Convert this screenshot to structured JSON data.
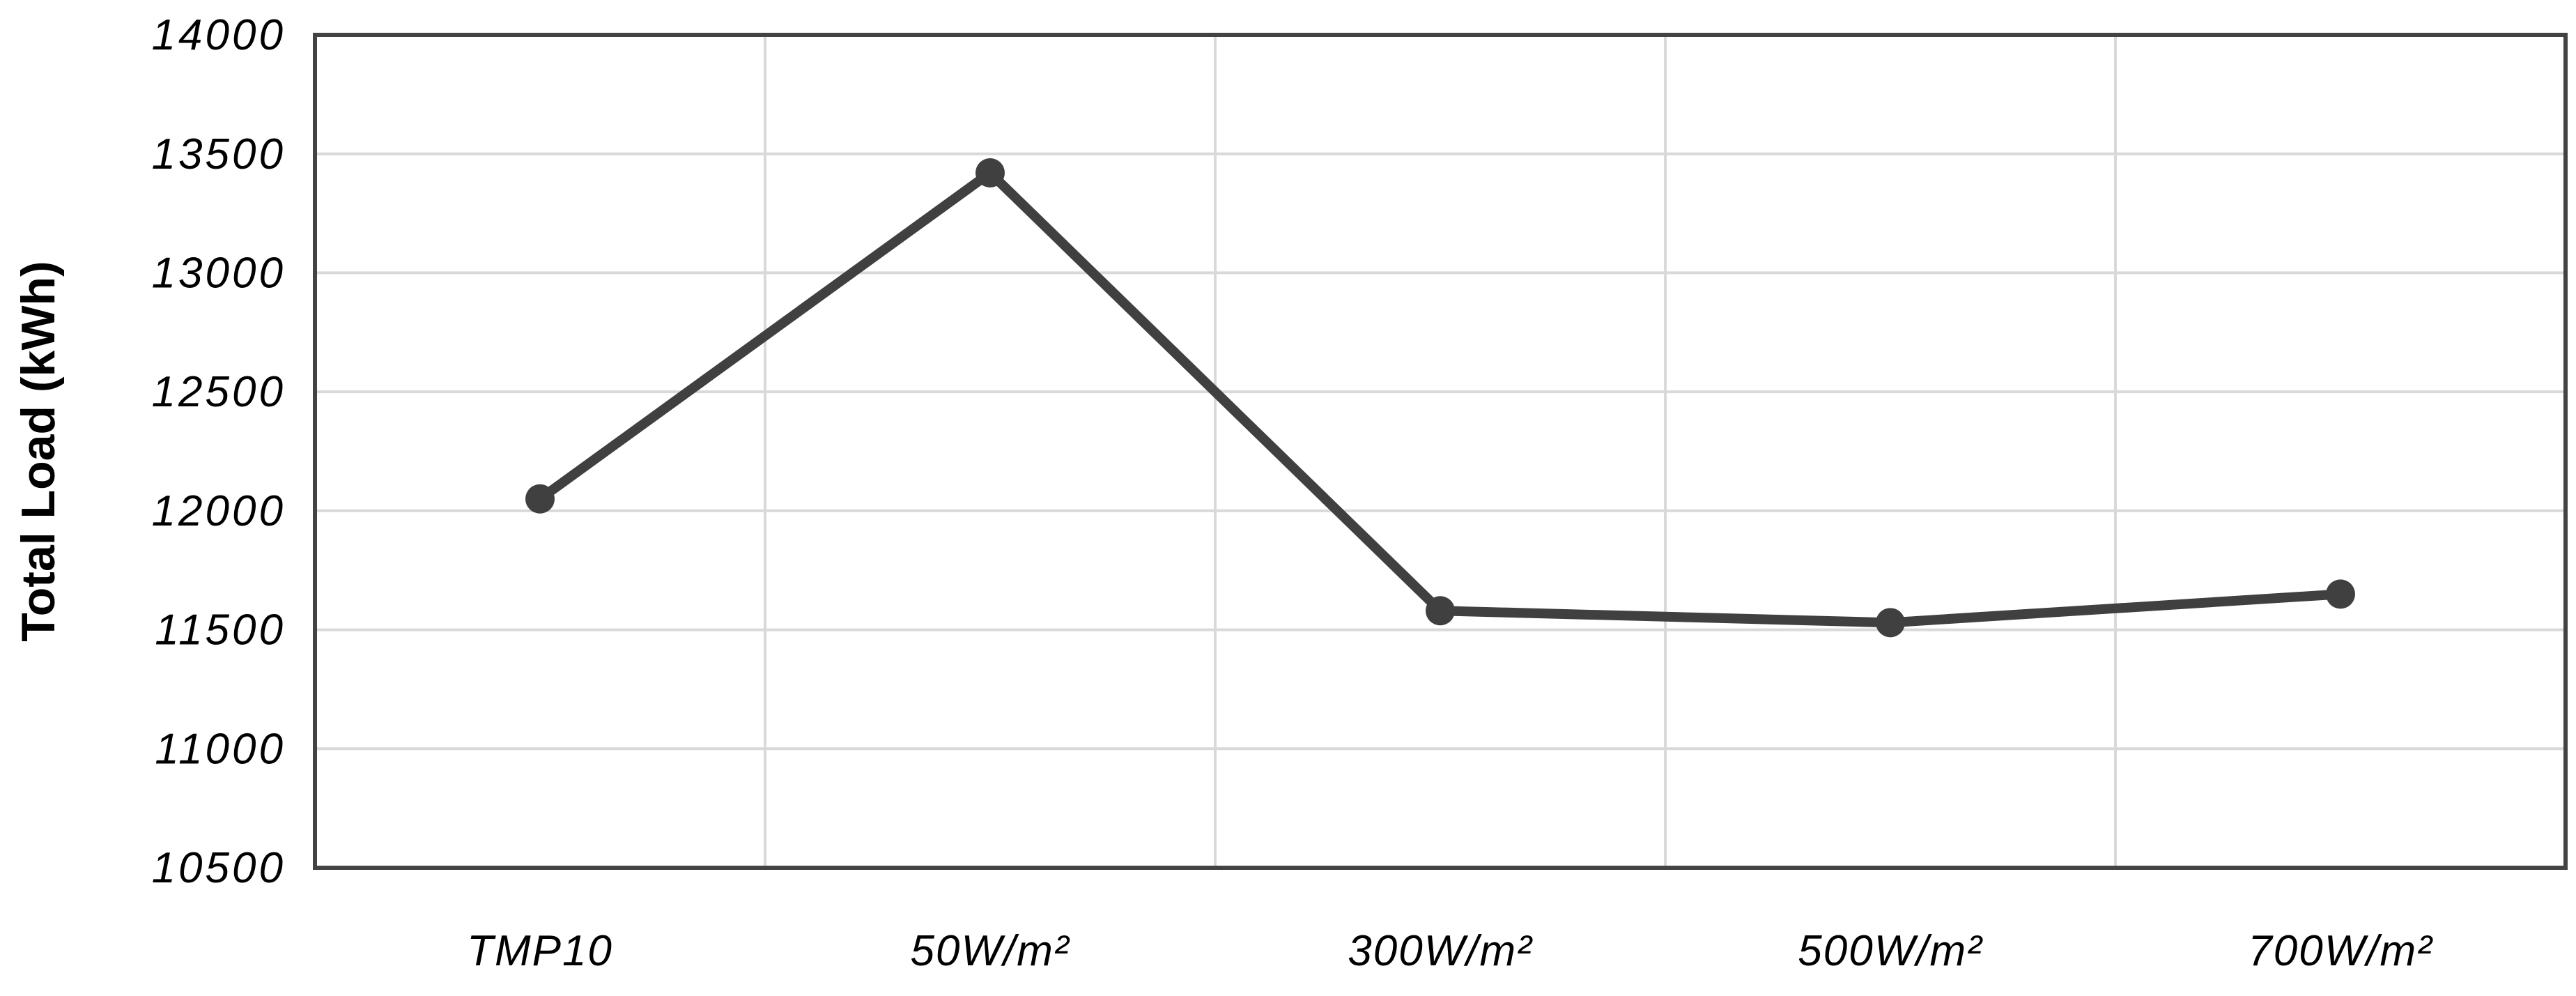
{
  "figure": {
    "background_color": "#ffffff"
  },
  "chart_data": {
    "type": "line",
    "title": "",
    "categories": [
      "TMP10",
      "50W/m²",
      "300W/m²",
      "500W/m²",
      "700W/m²"
    ],
    "series": [
      {
        "name": "Total Load",
        "values": [
          12050,
          13420,
          11580,
          11530,
          11650
        ]
      }
    ],
    "xlabel": "",
    "ylabel": "Total Load (kWh)",
    "ylim": [
      10500,
      14000
    ],
    "ytick_step": 500,
    "yticks": [
      10500,
      11000,
      11500,
      12000,
      12500,
      13000,
      13500,
      14000
    ],
    "grid": true,
    "grid_vertical": true,
    "legend_position": "none",
    "line_color": "#404040",
    "marker_color": "#404040",
    "marker_shape": "circle",
    "border_color": "#434343",
    "grid_color": "#d9d9d9",
    "tick_label_color": "#000000",
    "tick_label_style": "italic",
    "axis_title_style": "bold"
  }
}
